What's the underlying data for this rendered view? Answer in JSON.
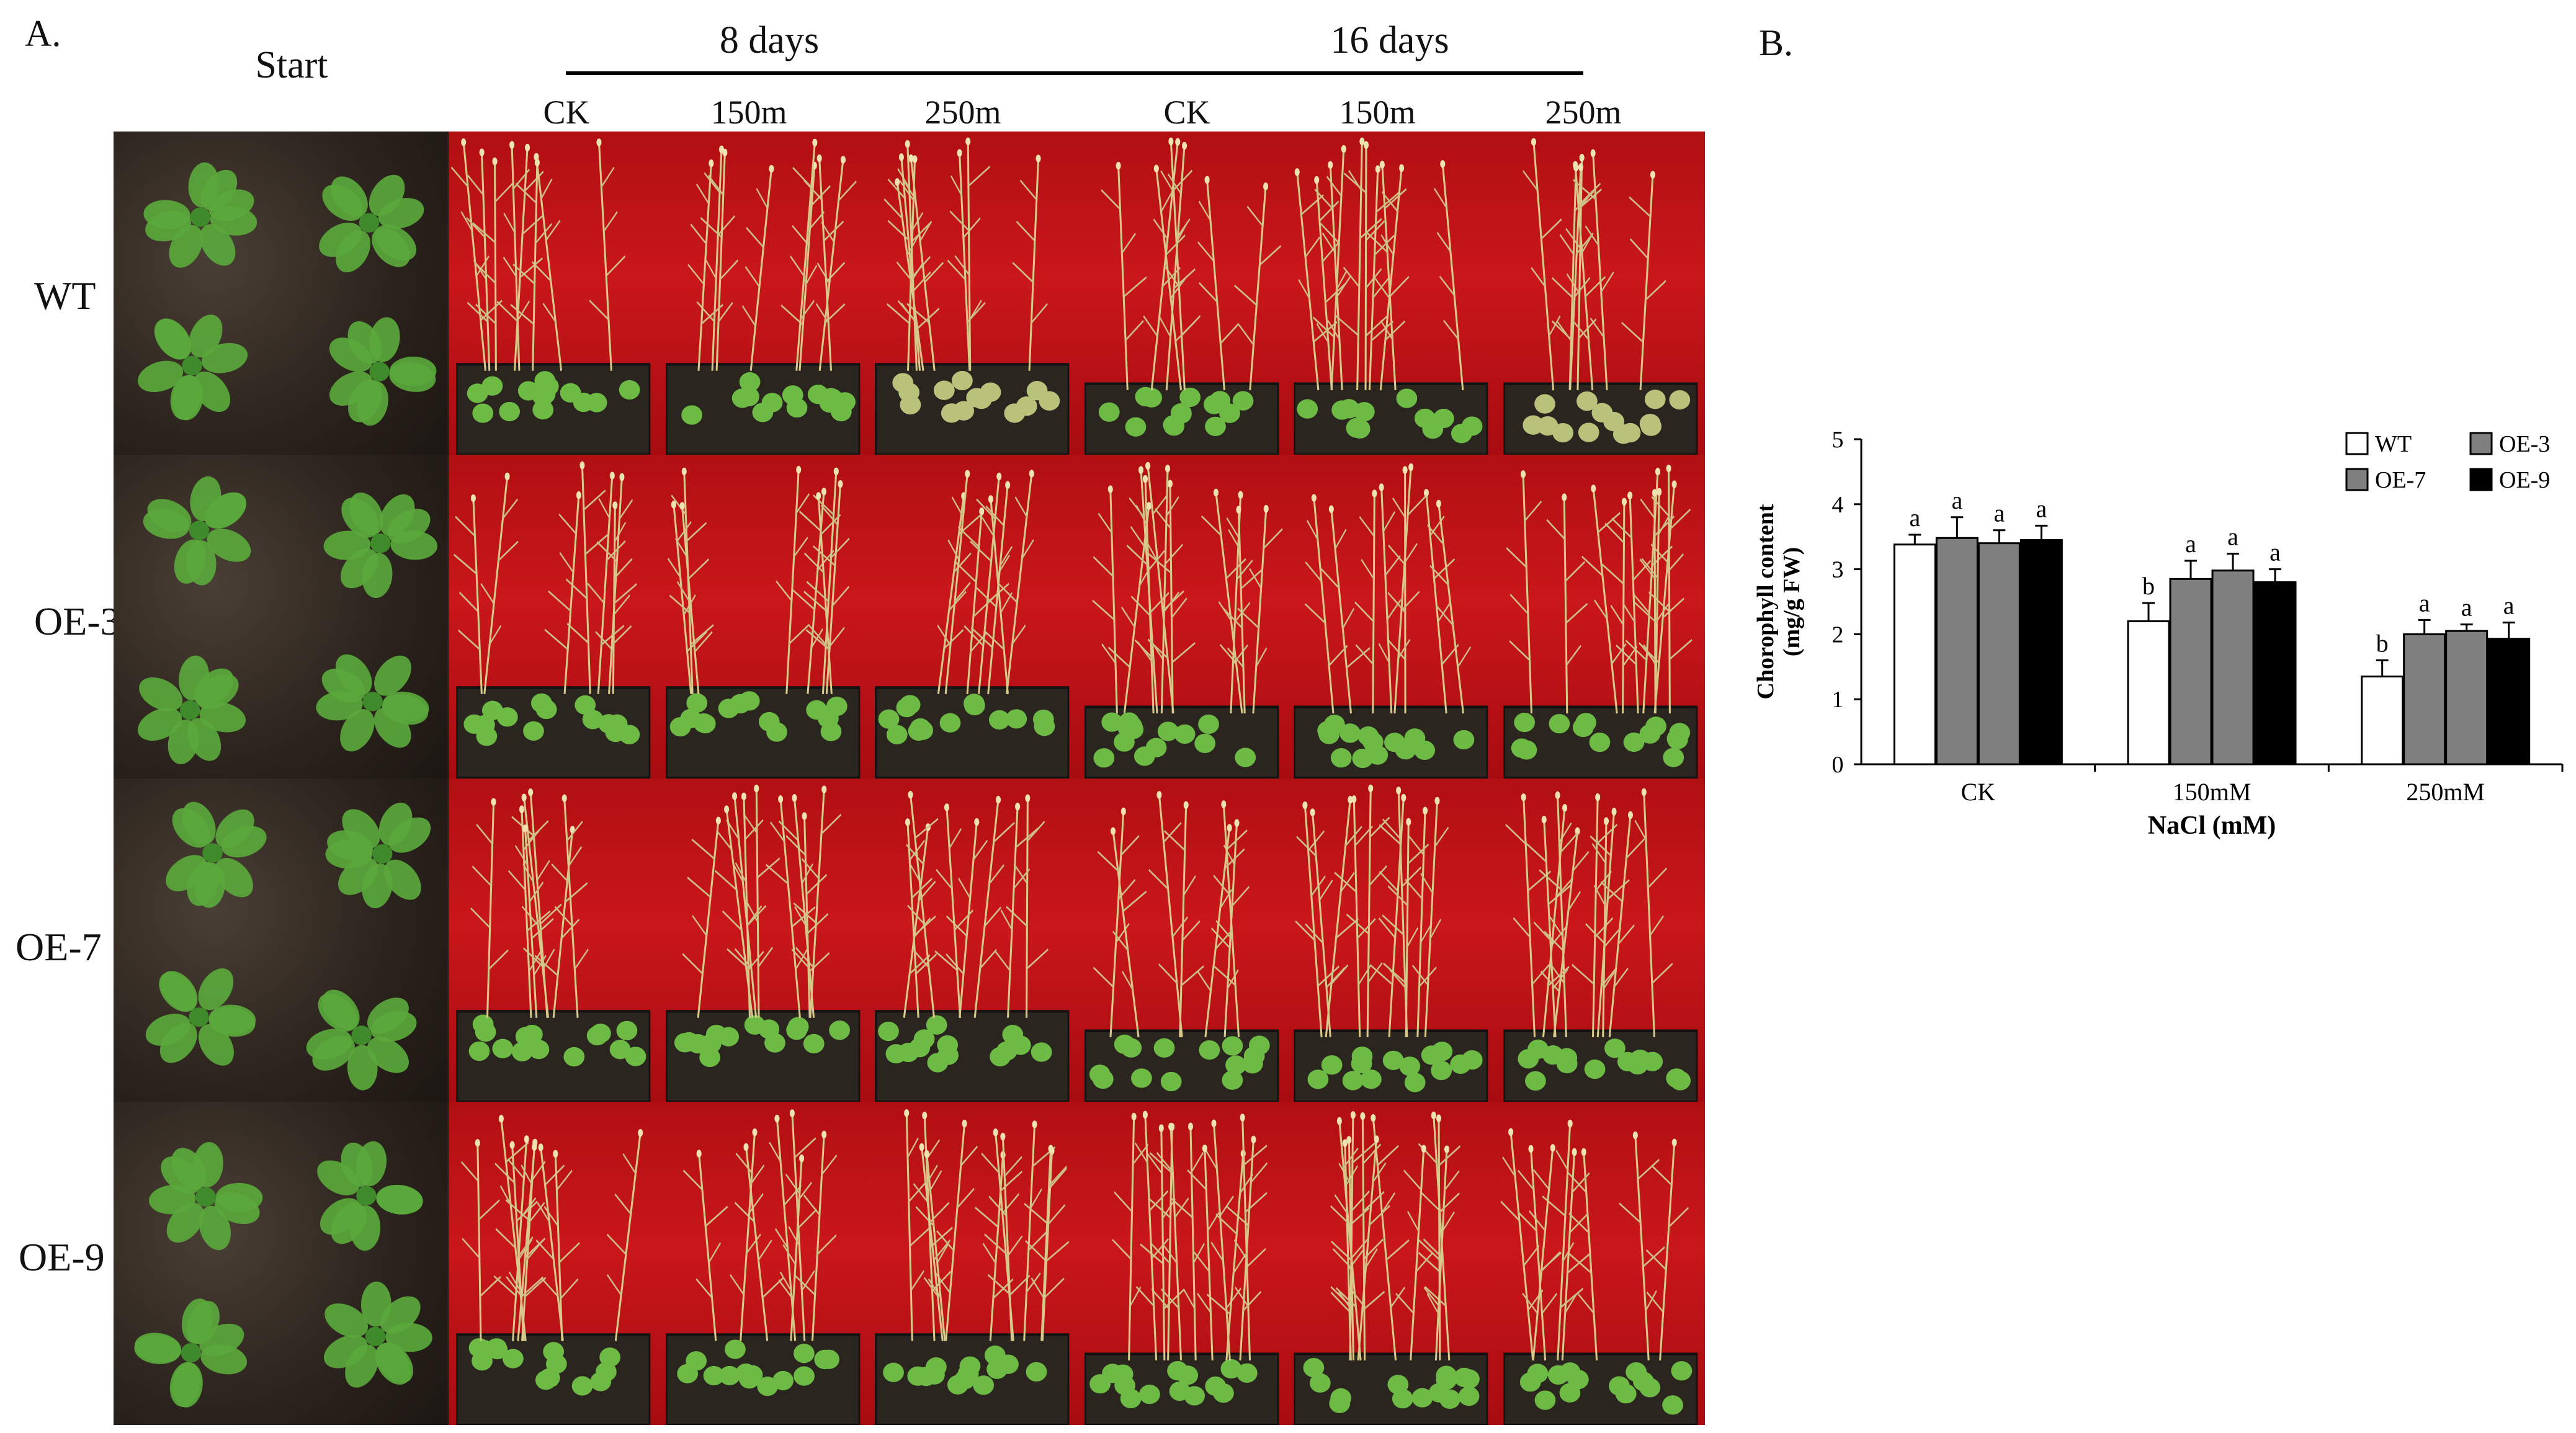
{
  "panel_a": {
    "letter": "A.",
    "start_label": "Start",
    "period_8": "8 days",
    "period_16": "16 days",
    "columns": [
      "CK",
      "150m",
      "250m",
      "CK",
      "150m",
      "250m"
    ],
    "rows": [
      "WT",
      "OE-3",
      "OE-7",
      "OE-9"
    ]
  },
  "panel_b": {
    "letter": "B."
  },
  "colors": {
    "photo_background": "#c0141a",
    "soil": "#2a221c",
    "leaf": "#5aa83c"
  },
  "chart_data": {
    "type": "bar",
    "title": "",
    "xlabel": "NaCl (mM)",
    "ylabel": "Chorophyll content",
    "ylabel_unit": "(mg/g FW)",
    "categories": [
      "CK",
      "150mM",
      "250mM"
    ],
    "ylim": [
      0,
      5
    ],
    "yticks": [
      0,
      1,
      2,
      3,
      4,
      5
    ],
    "legend_position": "top-right",
    "series": [
      {
        "name": "WT",
        "color": "#ffffff",
        "values": [
          3.38,
          2.2,
          1.35
        ],
        "errors": [
          0.15,
          0.28,
          0.25
        ],
        "letters": [
          "a",
          "b",
          "b"
        ]
      },
      {
        "name": "OE-3",
        "color": "#7f7f7f",
        "values": [
          3.48,
          2.85,
          2.0
        ],
        "errors": [
          0.32,
          0.28,
          0.22
        ],
        "letters": [
          "a",
          "a",
          "a"
        ]
      },
      {
        "name": "OE-7",
        "color": "#7f7f7f",
        "values": [
          3.4,
          2.98,
          2.05
        ],
        "errors": [
          0.2,
          0.26,
          0.1
        ],
        "letters": [
          "a",
          "a",
          "a"
        ]
      },
      {
        "name": "OE-9",
        "color": "#000000",
        "values": [
          3.45,
          2.8,
          1.93
        ],
        "errors": [
          0.22,
          0.2,
          0.25
        ],
        "letters": [
          "a",
          "a",
          "a"
        ]
      }
    ]
  }
}
